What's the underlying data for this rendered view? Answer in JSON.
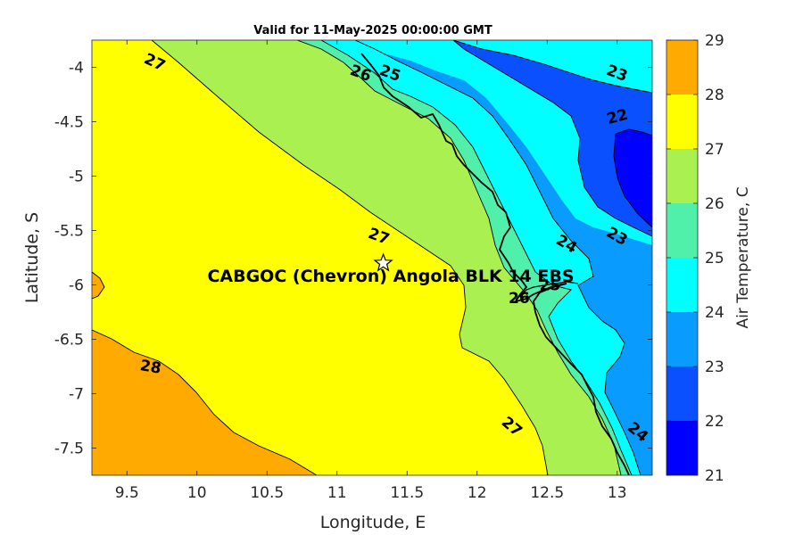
{
  "chart_data": {
    "type": "heatmap",
    "title": "Valid for 11-May-2025 00:00:00 GMT",
    "xlabel": "Longitude, E",
    "ylabel": "Latitude, S",
    "xlim": [
      9.25,
      13.25
    ],
    "ylim": [
      -7.75,
      -3.75
    ],
    "x_ticks": [
      9.5,
      10,
      10.5,
      11,
      11.5,
      12,
      12.5,
      13
    ],
    "y_ticks": [
      -4,
      -4.5,
      -5,
      -5.5,
      -6,
      -6.5,
      -7,
      -7.5
    ],
    "x_tick_labels": [
      "9.5",
      "10",
      "10.5",
      "11",
      "11.5",
      "12",
      "12.5",
      "13"
    ],
    "y_tick_labels": [
      "-4",
      "-4.5",
      "-5",
      "-5.5",
      "-6",
      "-6.5",
      "-7",
      "-7.5"
    ],
    "colorbar": {
      "label": "Air Temperature, C",
      "range": [
        21,
        29
      ],
      "ticks": [
        21,
        22,
        23,
        24,
        25,
        26,
        27,
        28,
        29
      ],
      "tick_labels": [
        "21",
        "22",
        "23",
        "24",
        "25",
        "26",
        "27",
        "28",
        "29"
      ],
      "band_colors": [
        "#0000ff",
        "#0a50ff",
        "#0a9bff",
        "#00ffff",
        "#50f0aa",
        "#aaf050",
        "#ffff00",
        "#ffaa00",
        "#ff5000"
      ]
    },
    "contour_levels": [
      22,
      23,
      24,
      25,
      26,
      27,
      28
    ],
    "contour_labels": [
      {
        "text": "27",
        "lon": 9.7,
        "lat": -3.95,
        "rotate": 25
      },
      {
        "text": "26",
        "lon": 11.17,
        "lat": -4.05,
        "rotate": 20
      },
      {
        "text": "25",
        "lon": 11.38,
        "lat": -4.05,
        "rotate": 20
      },
      {
        "text": "23",
        "lon": 13.0,
        "lat": -4.05,
        "rotate": 20
      },
      {
        "text": "22",
        "lon": 13.0,
        "lat": -4.45,
        "rotate": -15
      },
      {
        "text": "27",
        "lon": 11.3,
        "lat": -5.55,
        "rotate": 20
      },
      {
        "text": "24",
        "lon": 12.64,
        "lat": -5.62,
        "rotate": 30
      },
      {
        "text": "23",
        "lon": 13.0,
        "lat": -5.55,
        "rotate": 30
      },
      {
        "text": "28",
        "lon": 9.67,
        "lat": -6.75,
        "rotate": 10
      },
      {
        "text": "27",
        "lon": 12.25,
        "lat": -7.3,
        "rotate": 40
      },
      {
        "text": "24",
        "lon": 13.15,
        "lat": -7.35,
        "rotate": 40
      },
      {
        "text": "26",
        "lon": 12.3,
        "lat": -6.12,
        "rotate": 0
      },
      {
        "text": "25",
        "lon": 12.52,
        "lat": -6.0,
        "rotate": 0
      }
    ],
    "station": {
      "name": "CABGOC (Chevron)  Angola BLK 14 EBS",
      "lon": 11.33,
      "lat": -5.8,
      "marker": "star"
    },
    "colormap": "jet"
  }
}
